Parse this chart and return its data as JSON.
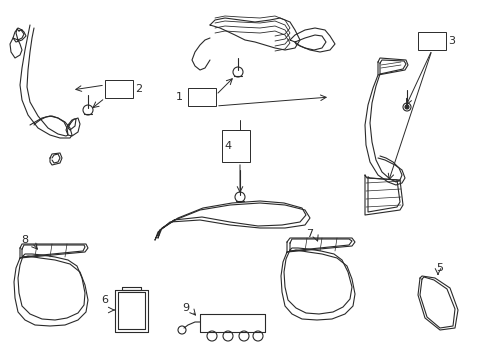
{
  "background": "#ffffff",
  "line_color": "#2a2a2a",
  "line_width": 0.8,
  "label_fontsize": 8,
  "fig_w": 4.89,
  "fig_h": 3.6,
  "dpi": 100
}
